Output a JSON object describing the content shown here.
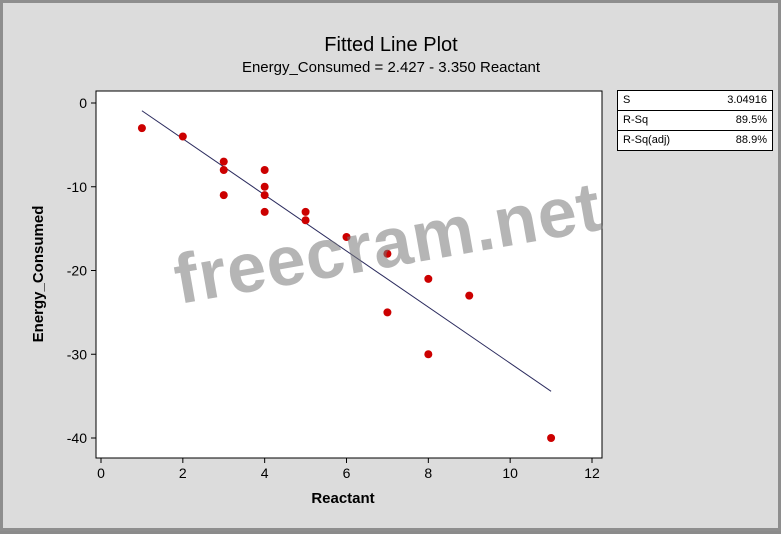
{
  "chart_data": {
    "type": "scatter",
    "title": "Fitted Line Plot",
    "subtitle": "Energy_Consumed =  2.427 - 3.350 Reactant",
    "xlabel": "Reactant",
    "ylabel": "Energy_Consumed",
    "xlim": [
      0,
      12
    ],
    "ylim": [
      -40,
      0
    ],
    "x_ticks": [
      0,
      2,
      4,
      6,
      8,
      10,
      12
    ],
    "y_ticks": [
      0,
      -10,
      -20,
      -30,
      -40
    ],
    "grid": false,
    "points": [
      {
        "x": 1,
        "y": -3
      },
      {
        "x": 2,
        "y": -4
      },
      {
        "x": 3,
        "y": -7
      },
      {
        "x": 3,
        "y": -8
      },
      {
        "x": 3,
        "y": -11
      },
      {
        "x": 4,
        "y": -8
      },
      {
        "x": 4,
        "y": -10
      },
      {
        "x": 4,
        "y": -11
      },
      {
        "x": 4,
        "y": -13
      },
      {
        "x": 5,
        "y": -13
      },
      {
        "x": 5,
        "y": -14
      },
      {
        "x": 6,
        "y": -16
      },
      {
        "x": 7,
        "y": -18
      },
      {
        "x": 7,
        "y": -25
      },
      {
        "x": 8,
        "y": -21
      },
      {
        "x": 8,
        "y": -30
      },
      {
        "x": 9,
        "y": -23
      },
      {
        "x": 11,
        "y": -40
      }
    ],
    "fit": {
      "intercept": 2.427,
      "slope": -3.35,
      "x_range": [
        1,
        11
      ]
    },
    "point_color": "#cc0000",
    "line_color": "#2b2b5e"
  },
  "stats": [
    {
      "label": "S",
      "value": "3.04916"
    },
    {
      "label": "R-Sq",
      "value": "89.5%"
    },
    {
      "label": "R-Sq(adj)",
      "value": "88.9%"
    }
  ],
  "watermark": "freecram.net"
}
